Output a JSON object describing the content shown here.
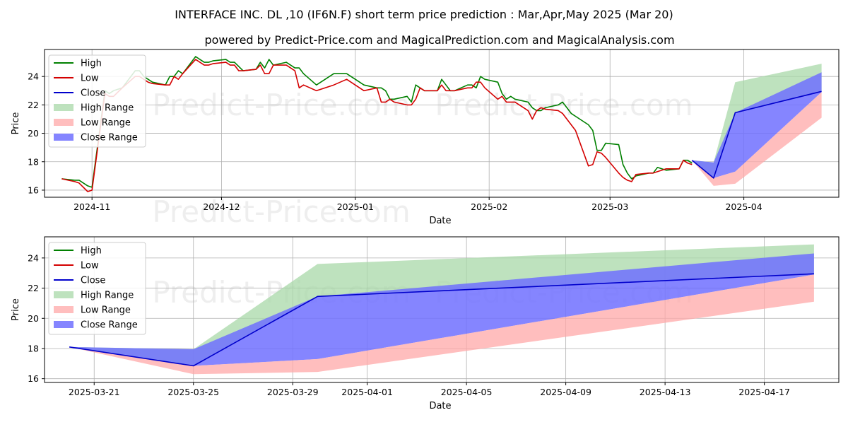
{
  "header": {
    "title": "INTERFACE INC. DL ,10 (IF6N.F) short term price prediction : Mar,Apr,May 2025 (Mar 20)",
    "subtitle": "powered by Predict-Price.com and MagicalPrediction.com and MagicalAnalysis.com"
  },
  "watermark": "Predict-Price.com",
  "colors": {
    "high": "#008000",
    "low": "#d40000",
    "close": "#0000cc",
    "high_range": "#a8d8a8",
    "low_range": "#ffa8a8",
    "close_range": "#7070ff",
    "grid": "#b0b0b0"
  },
  "chart_data": [
    {
      "type": "line",
      "xlabel": "Date",
      "ylabel": "Price",
      "ylim": [
        15.5,
        25.9
      ],
      "xlim": [
        "2024-10-21",
        "2025-04-23"
      ],
      "yticks": [
        16,
        18,
        20,
        22,
        24
      ],
      "xticks": [
        {
          "date": "2024-11-01",
          "label": "2024-11"
        },
        {
          "date": "2024-12-01",
          "label": "2024-12"
        },
        {
          "date": "2025-01-01",
          "label": "2025-01"
        },
        {
          "date": "2025-02-01",
          "label": "2025-02"
        },
        {
          "date": "2025-03-01",
          "label": "2025-03"
        },
        {
          "date": "2025-04-01",
          "label": "2025-04"
        }
      ],
      "grid": true,
      "legend_position": "upper-left",
      "legend": [
        "High",
        "Low",
        "Close",
        "High Range",
        "Low Range",
        "Close Range"
      ],
      "series": [
        {
          "name": "High",
          "x": [
            "2024-10-25",
            "2024-10-28",
            "2024-10-29",
            "2024-10-31",
            "2024-11-01",
            "2024-11-04",
            "2024-11-05",
            "2024-11-06",
            "2024-11-07",
            "2024-11-08",
            "2024-11-11",
            "2024-11-12",
            "2024-11-13",
            "2024-11-14",
            "2024-11-15",
            "2024-11-18",
            "2024-11-19",
            "2024-11-20",
            "2024-11-21",
            "2024-11-22",
            "2024-11-25",
            "2024-11-26",
            "2024-11-27",
            "2024-11-28",
            "2024-11-29",
            "2024-12-02",
            "2024-12-03",
            "2024-12-04",
            "2024-12-05",
            "2024-12-06",
            "2024-12-09",
            "2024-12-10",
            "2024-12-11",
            "2024-12-12",
            "2024-12-13",
            "2024-12-16",
            "2024-12-17",
            "2024-12-18",
            "2024-12-19",
            "2024-12-20",
            "2024-12-23",
            "2024-12-27",
            "2024-12-30",
            "2025-01-02",
            "2025-01-03",
            "2025-01-06",
            "2025-01-07",
            "2025-01-08",
            "2025-01-09",
            "2025-01-10",
            "2025-01-13",
            "2025-01-14",
            "2025-01-15",
            "2025-01-16",
            "2025-01-17",
            "2025-01-20",
            "2025-01-21",
            "2025-01-22",
            "2025-01-23",
            "2025-01-24",
            "2025-01-27",
            "2025-01-28",
            "2025-01-29",
            "2025-01-30",
            "2025-01-31",
            "2025-02-03",
            "2025-02-04",
            "2025-02-05",
            "2025-02-06",
            "2025-02-07",
            "2025-02-10",
            "2025-02-11",
            "2025-02-12",
            "2025-02-13",
            "2025-02-14",
            "2025-02-17",
            "2025-02-18",
            "2025-02-19",
            "2025-02-20",
            "2025-02-21",
            "2025-02-24",
            "2025-02-25",
            "2025-02-26",
            "2025-02-27",
            "2025-02-28",
            "2025-03-03",
            "2025-03-04",
            "2025-03-05",
            "2025-03-06",
            "2025-03-07",
            "2025-03-10",
            "2025-03-11",
            "2025-03-12",
            "2025-03-13",
            "2025-03-14",
            "2025-03-17",
            "2025-03-18",
            "2025-03-19",
            "2025-03-20"
          ],
          "values": [
            16.8,
            16.7,
            16.7,
            16.3,
            16.2,
            23.0,
            22.8,
            23.0,
            23.1,
            23.2,
            24.4,
            24.4,
            24.0,
            23.8,
            23.6,
            23.4,
            24.0,
            24.0,
            24.4,
            24.2,
            25.4,
            25.2,
            25.0,
            25.0,
            25.1,
            25.2,
            25.0,
            25.0,
            24.7,
            24.4,
            24.5,
            25.0,
            24.6,
            25.2,
            24.8,
            25.0,
            24.8,
            24.6,
            24.6,
            24.2,
            23.4,
            24.2,
            24.2,
            23.6,
            23.4,
            23.2,
            23.2,
            23.0,
            22.4,
            22.4,
            22.6,
            22.2,
            23.4,
            23.2,
            23.0,
            23.0,
            23.8,
            23.4,
            23.0,
            23.0,
            23.4,
            23.4,
            23.2,
            24.0,
            23.8,
            23.6,
            22.8,
            22.4,
            22.6,
            22.4,
            22.2,
            21.8,
            21.6,
            21.6,
            21.8,
            22.0,
            22.2,
            21.8,
            21.4,
            21.2,
            20.6,
            20.2,
            18.8,
            18.8,
            19.3,
            19.2,
            17.8,
            17.2,
            16.8,
            17.0,
            17.2,
            17.2,
            17.6,
            17.5,
            17.4,
            17.5,
            18.1,
            18.1,
            17.9
          ]
        },
        {
          "name": "Low",
          "x": [
            "2024-10-25",
            "2024-10-28",
            "2024-10-29",
            "2024-10-31",
            "2024-11-01",
            "2024-11-04",
            "2024-11-05",
            "2024-11-06",
            "2024-11-07",
            "2024-11-08",
            "2024-11-11",
            "2024-11-12",
            "2024-11-13",
            "2024-11-14",
            "2024-11-15",
            "2024-11-18",
            "2024-11-19",
            "2024-11-20",
            "2024-11-21",
            "2024-11-22",
            "2024-11-25",
            "2024-11-26",
            "2024-11-27",
            "2024-11-28",
            "2024-11-29",
            "2024-12-02",
            "2024-12-03",
            "2024-12-04",
            "2024-12-05",
            "2024-12-06",
            "2024-12-09",
            "2024-12-10",
            "2024-12-11",
            "2024-12-12",
            "2024-12-13",
            "2024-12-16",
            "2024-12-17",
            "2024-12-18",
            "2024-12-19",
            "2024-12-20",
            "2024-12-23",
            "2024-12-27",
            "2024-12-30",
            "2025-01-02",
            "2025-01-03",
            "2025-01-06",
            "2025-01-07",
            "2025-01-08",
            "2025-01-09",
            "2025-01-10",
            "2025-01-13",
            "2025-01-14",
            "2025-01-15",
            "2025-01-16",
            "2025-01-17",
            "2025-01-20",
            "2025-01-21",
            "2025-01-22",
            "2025-01-23",
            "2025-01-24",
            "2025-01-27",
            "2025-01-28",
            "2025-01-29",
            "2025-01-30",
            "2025-01-31",
            "2025-02-03",
            "2025-02-04",
            "2025-02-05",
            "2025-02-06",
            "2025-02-07",
            "2025-02-10",
            "2025-02-11",
            "2025-02-12",
            "2025-02-13",
            "2025-02-14",
            "2025-02-17",
            "2025-02-18",
            "2025-02-19",
            "2025-02-20",
            "2025-02-21",
            "2025-02-24",
            "2025-02-25",
            "2025-02-26",
            "2025-02-27",
            "2025-02-28",
            "2025-03-03",
            "2025-03-04",
            "2025-03-05",
            "2025-03-06",
            "2025-03-07",
            "2025-03-10",
            "2025-03-11",
            "2025-03-12",
            "2025-03-13",
            "2025-03-14",
            "2025-03-17",
            "2025-03-18",
            "2025-03-19",
            "2025-03-20"
          ],
          "values": [
            16.8,
            16.6,
            16.5,
            15.9,
            16.0,
            22.8,
            22.6,
            22.6,
            22.9,
            23.2,
            24.0,
            24.0,
            23.8,
            23.6,
            23.5,
            23.4,
            23.4,
            24.0,
            23.8,
            24.2,
            25.2,
            25.0,
            24.8,
            24.8,
            24.9,
            25.0,
            24.8,
            24.8,
            24.4,
            24.4,
            24.5,
            24.8,
            24.2,
            24.2,
            24.8,
            24.8,
            24.6,
            24.4,
            23.2,
            23.4,
            23.0,
            23.4,
            23.8,
            23.2,
            23.0,
            23.2,
            22.2,
            22.2,
            22.4,
            22.2,
            22.0,
            22.0,
            22.4,
            23.2,
            23.0,
            23.0,
            23.4,
            23.0,
            23.0,
            23.0,
            23.2,
            23.2,
            23.6,
            23.6,
            23.2,
            22.4,
            22.6,
            22.2,
            22.2,
            22.2,
            21.6,
            21.0,
            21.6,
            21.8,
            21.7,
            21.6,
            21.4,
            21.0,
            20.6,
            20.2,
            17.7,
            17.8,
            18.7,
            18.6,
            18.3,
            17.2,
            16.9,
            16.7,
            16.6,
            17.1,
            17.2,
            17.2,
            17.3,
            17.4,
            17.5,
            17.5,
            18.1,
            17.9,
            17.8
          ]
        },
        {
          "name": "Close",
          "x": [
            "2025-03-20",
            "2025-03-25",
            "2025-03-30",
            "2025-04-19"
          ],
          "values": [
            18.1,
            16.85,
            21.45,
            22.95
          ]
        }
      ],
      "ranges": [
        {
          "name": "High Range",
          "x": [
            "2025-03-20",
            "2025-03-25",
            "2025-03-30",
            "2025-04-19"
          ],
          "upper": [
            18.1,
            17.95,
            23.6,
            24.9
          ],
          "lower": [
            18.1,
            16.85,
            21.45,
            22.95
          ]
        },
        {
          "name": "Close Range",
          "x": [
            "2025-03-20",
            "2025-03-25",
            "2025-03-30",
            "2025-04-19"
          ],
          "upper": [
            18.1,
            17.95,
            21.45,
            24.3
          ],
          "lower": [
            18.1,
            16.85,
            17.3,
            22.9
          ]
        },
        {
          "name": "Low Range",
          "x": [
            "2025-03-20",
            "2025-03-25",
            "2025-03-30",
            "2025-04-19"
          ],
          "upper": [
            18.1,
            16.85,
            17.3,
            22.9
          ],
          "lower": [
            18.1,
            16.3,
            16.45,
            21.1
          ]
        }
      ]
    },
    {
      "type": "line",
      "xlabel": "Date",
      "ylabel": "Price",
      "ylim": [
        15.75,
        25.4
      ],
      "xlim": [
        "2025-03-19",
        "2025-04-20"
      ],
      "yticks": [
        16,
        18,
        20,
        22,
        24
      ],
      "xticks": [
        {
          "date": "2025-03-21",
          "label": "2025-03-21"
        },
        {
          "date": "2025-03-25",
          "label": "2025-03-25"
        },
        {
          "date": "2025-03-29",
          "label": "2025-03-29"
        },
        {
          "date": "2025-04-01",
          "label": "2025-04-01"
        },
        {
          "date": "2025-04-05",
          "label": "2025-04-05"
        },
        {
          "date": "2025-04-09",
          "label": "2025-04-09"
        },
        {
          "date": "2025-04-13",
          "label": "2025-04-13"
        },
        {
          "date": "2025-04-17",
          "label": "2025-04-17"
        }
      ],
      "grid": true,
      "legend_position": "upper-left",
      "legend": [
        "High",
        "Low",
        "Close",
        "High Range",
        "Low Range",
        "Close Range"
      ],
      "series": [
        {
          "name": "Close",
          "x": [
            "2025-03-20",
            "2025-03-25",
            "2025-03-30",
            "2025-04-19"
          ],
          "values": [
            18.1,
            16.85,
            21.45,
            22.95
          ]
        }
      ],
      "ranges": [
        {
          "name": "High Range",
          "x": [
            "2025-03-20",
            "2025-03-25",
            "2025-03-30",
            "2025-04-19"
          ],
          "upper": [
            18.1,
            17.95,
            23.6,
            24.9
          ],
          "lower": [
            18.1,
            16.85,
            21.45,
            22.95
          ]
        },
        {
          "name": "Close Range",
          "x": [
            "2025-03-20",
            "2025-03-25",
            "2025-03-30",
            "2025-04-19"
          ],
          "upper": [
            18.1,
            17.95,
            21.45,
            24.3
          ],
          "lower": [
            18.1,
            16.85,
            17.3,
            22.9
          ]
        },
        {
          "name": "Low Range",
          "x": [
            "2025-03-20",
            "2025-03-25",
            "2025-03-30",
            "2025-04-19"
          ],
          "upper": [
            18.1,
            16.85,
            17.3,
            22.9
          ],
          "lower": [
            18.1,
            16.3,
            16.45,
            21.1
          ]
        }
      ]
    }
  ]
}
